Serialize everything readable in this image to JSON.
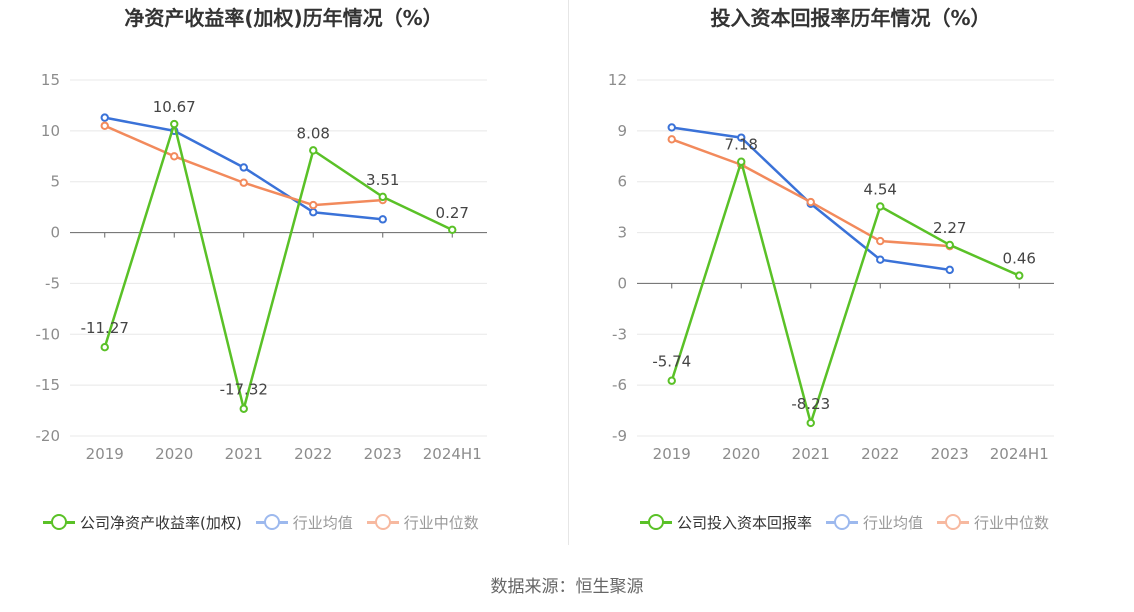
{
  "source": "数据来源：恒生聚源",
  "colors": {
    "company": "#5ac127",
    "avg": "#3a72d8",
    "median": "#f28a5c",
    "grid": "#e8e8e8",
    "axis": "#666666"
  },
  "chart_data": [
    {
      "type": "line",
      "title": "净资产收益率(加权)历年情况（%）",
      "categories": [
        "2019",
        "2020",
        "2021",
        "2022",
        "2023",
        "2024H1"
      ],
      "y_ticks": [
        "15",
        "10",
        "5",
        "0",
        "-5",
        "-10",
        "-15",
        "-20"
      ],
      "ylim": [
        -20,
        15
      ],
      "grid": true,
      "legend_position": "bottom-left",
      "series": [
        {
          "name": "公司净资产收益率(加权)",
          "values": [
            -11.27,
            10.67,
            -17.32,
            8.08,
            3.51,
            0.27
          ],
          "labels": [
            "-11.27",
            "10.67",
            "-17.32",
            "8.08",
            "3.51",
            "0.27"
          ]
        },
        {
          "name": "行业均值",
          "values": [
            11.3,
            10.0,
            6.4,
            2.0,
            1.3,
            null
          ]
        },
        {
          "name": "行业中位数",
          "values": [
            10.5,
            7.5,
            4.9,
            2.7,
            3.2,
            null
          ]
        }
      ]
    },
    {
      "type": "line",
      "title": "投入资本回报率历年情况（%）",
      "categories": [
        "2019",
        "2020",
        "2021",
        "2022",
        "2023",
        "2024H1"
      ],
      "y_ticks": [
        "12",
        "9",
        "6",
        "3",
        "0",
        "-3",
        "-6",
        "-9"
      ],
      "ylim": [
        -9,
        12
      ],
      "grid": true,
      "legend_position": "bottom-left",
      "series": [
        {
          "name": "公司投入资本回报率",
          "values": [
            -5.74,
            7.18,
            -8.23,
            4.54,
            2.27,
            0.46
          ],
          "labels": [
            "-5.74",
            "7.18",
            "-8.23",
            "4.54",
            "2.27",
            "0.46"
          ]
        },
        {
          "name": "行业均值",
          "values": [
            9.2,
            8.6,
            4.7,
            1.4,
            0.8,
            null
          ]
        },
        {
          "name": "行业中位数",
          "values": [
            8.5,
            7.0,
            4.8,
            2.5,
            2.2,
            null
          ]
        }
      ]
    }
  ]
}
